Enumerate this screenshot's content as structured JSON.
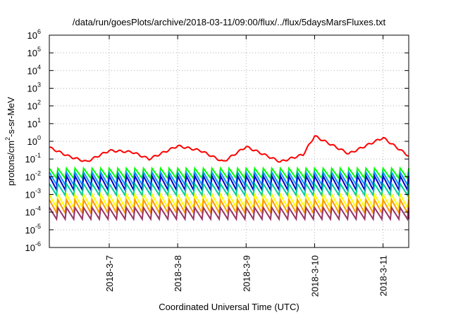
{
  "chart_data": {
    "type": "line",
    "title": "/data/run/goesPlots/archive/2018-03-11/09:00/flux/../flux/5daysMarsFluxes.txt",
    "xlabel": "Coordinated Universal Time (UTC)",
    "ylabel": "protons/cm2-s-sr-MeV",
    "ylabel_parts": {
      "pre": "protons/cm",
      "sup": "2",
      "post": "-s-sr-MeV"
    },
    "y_scale": "log",
    "ylim_exponents": [
      -6,
      6
    ],
    "y_ticks": [
      {
        "base": "10",
        "exp": "-6"
      },
      {
        "base": "10",
        "exp": "-5"
      },
      {
        "base": "10",
        "exp": "-4"
      },
      {
        "base": "10",
        "exp": "-3"
      },
      {
        "base": "10",
        "exp": "-2"
      },
      {
        "base": "10",
        "exp": "-1"
      },
      {
        "base": "10",
        "exp": "0"
      },
      {
        "base": "10",
        "exp": "1"
      },
      {
        "base": "10",
        "exp": "2"
      },
      {
        "base": "10",
        "exp": "3"
      },
      {
        "base": "10",
        "exp": "4"
      },
      {
        "base": "10",
        "exp": "5"
      },
      {
        "base": "10",
        "exp": "6"
      }
    ],
    "xlim": [
      "2018-03-06 03:00",
      "2018-03-11 09:00"
    ],
    "x_ticks": [
      "2018-3-7",
      "2018-3-8",
      "2018-3-9",
      "2018-3-10",
      "2018-3-11"
    ],
    "grid": true,
    "series": [
      {
        "color": "#ff0000",
        "pattern": "sawtooth",
        "envelope": [
          {
            "x": "2018-03-06 03:00",
            "y": 0.45
          },
          {
            "x": "2018-03-06 10:00",
            "y": 0.14
          },
          {
            "x": "2018-03-06 16:00",
            "y": 0.07
          },
          {
            "x": "2018-03-07 00:00",
            "y": 0.3
          },
          {
            "x": "2018-03-07 08:00",
            "y": 0.25
          },
          {
            "x": "2018-03-07 14:00",
            "y": 0.1
          },
          {
            "x": "2018-03-08 00:00",
            "y": 0.55
          },
          {
            "x": "2018-03-08 08:00",
            "y": 0.3
          },
          {
            "x": "2018-03-08 16:00",
            "y": 0.07
          },
          {
            "x": "2018-03-09 00:00",
            "y": 0.5
          },
          {
            "x": "2018-03-09 12:00",
            "y": 0.07
          },
          {
            "x": "2018-03-09 20:00",
            "y": 0.18
          },
          {
            "x": "2018-03-10 00:00",
            "y": 2.0
          },
          {
            "x": "2018-03-10 12:00",
            "y": 0.2
          },
          {
            "x": "2018-03-11 00:00",
            "y": 1.6
          },
          {
            "x": "2018-03-11 09:00",
            "y": 0.15
          }
        ]
      },
      {
        "color": "#00ff00",
        "pattern": "sawtooth",
        "high": 0.03,
        "low": 0.008
      },
      {
        "color": "#0099ff",
        "pattern": "sawtooth",
        "high": 0.018,
        "low": 0.0035
      },
      {
        "color": "#0000cc",
        "pattern": "sawtooth",
        "high": 0.011,
        "low": 0.0018
      },
      {
        "color": "#00cc99",
        "pattern": "sawtooth",
        "high": 0.004,
        "low": 0.0009
      },
      {
        "color": "#ffff00",
        "pattern": "sawtooth",
        "high": 0.001,
        "low": 0.00018
      },
      {
        "color": "#ff9900",
        "pattern": "sawtooth",
        "high": 0.0005,
        "low": 9e-05
      },
      {
        "color": "#993366",
        "pattern": "sawtooth",
        "high": 0.00018,
        "low": 4e-05
      }
    ]
  }
}
